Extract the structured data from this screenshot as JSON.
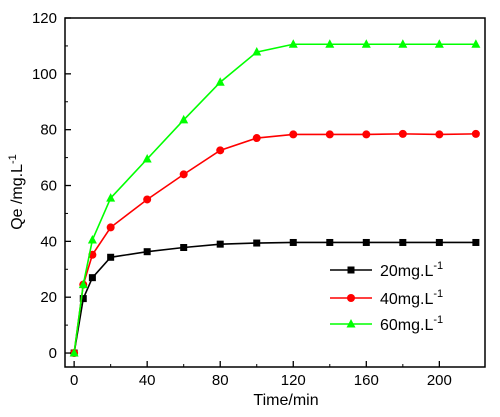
{
  "chart_data": {
    "type": "line",
    "xlabel": "Time/min",
    "ylabel": "Qe /mg.L",
    "ylabel_sup": "-1",
    "xlim": [
      -5,
      225
    ],
    "ylim": [
      -5,
      120
    ],
    "xticks": [
      0,
      40,
      80,
      120,
      160,
      200
    ],
    "yticks": [
      0,
      20,
      40,
      60,
      80,
      100,
      120
    ],
    "grid": false,
    "legend_position": "bottom-right",
    "x": [
      0,
      5,
      10,
      20,
      40,
      60,
      80,
      100,
      120,
      140,
      160,
      180,
      200,
      220
    ],
    "series": [
      {
        "name": "20mg.L",
        "name_sup": "-1",
        "color": "#000000",
        "marker": "square",
        "values": [
          0,
          19.5,
          27,
          34.3,
          36.3,
          37.8,
          39,
          39.4,
          39.6,
          39.6,
          39.6,
          39.6,
          39.6,
          39.6
        ]
      },
      {
        "name": "40mg.L",
        "name_sup": "-1",
        "color": "#ff0000",
        "marker": "circle",
        "values": [
          0,
          24.5,
          35.2,
          45,
          55,
          64,
          72.6,
          77,
          78.3,
          78.3,
          78.3,
          78.5,
          78.3,
          78.5
        ]
      },
      {
        "name": "60mg.L",
        "name_sup": "-1",
        "color": "#00ff00",
        "marker": "triangle",
        "values": [
          0,
          24.5,
          40.5,
          55.5,
          69.5,
          83.5,
          97,
          107.8,
          110.6,
          110.6,
          110.6,
          110.6,
          110.6,
          110.6
        ]
      }
    ]
  }
}
